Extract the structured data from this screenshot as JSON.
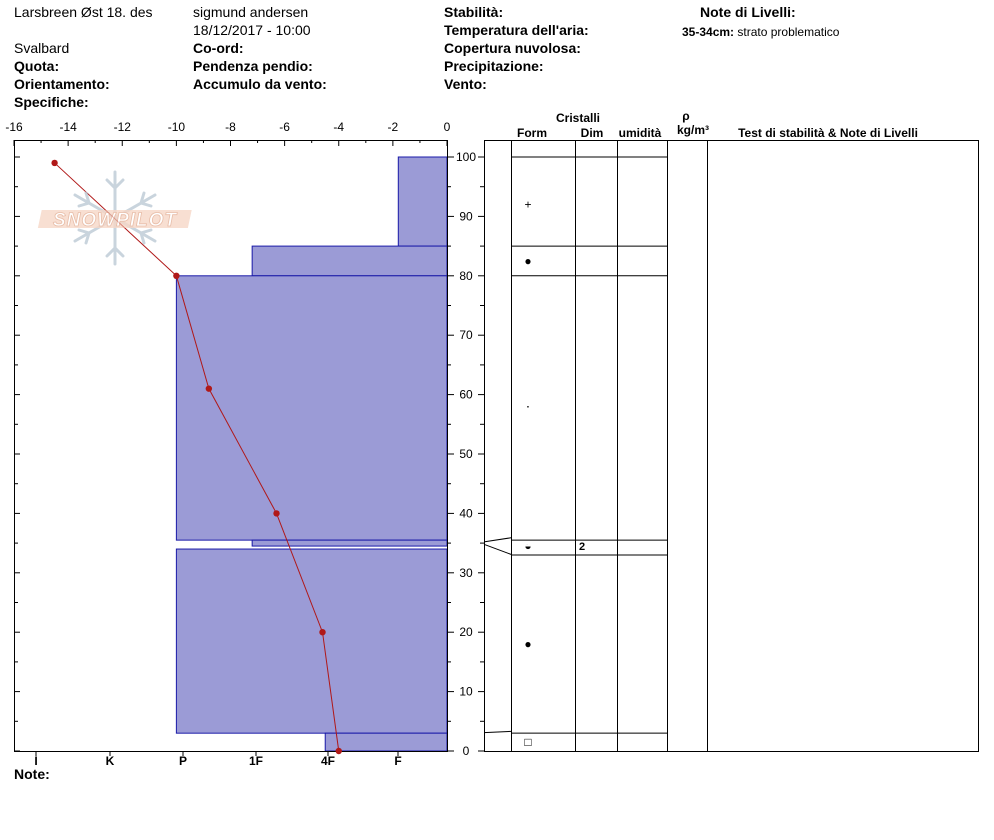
{
  "header": {
    "location": "Larsbreen Øst 18. des",
    "observer": "sigmund andersen",
    "datetime": "18/12/2017 - 10:00",
    "region": "Svalbard",
    "labels": {
      "quota": "Quota:",
      "orientamento": "Orientamento:",
      "specifiche": "Specifiche:",
      "coord": "Co-ord:",
      "pendenza": "Pendenza pendio:",
      "accumulo": "Accumulo da vento:",
      "stabilita": "Stabilità:",
      "temperatura": "Temperatura dell'aria:",
      "copertura": "Copertura nuvolosa:",
      "precipitazione": "Precipitazione:",
      "vento": "Vento:",
      "note_livelli": "Note di Livelli:"
    },
    "layer_note": {
      "range": "35-34cm:",
      "text": "strato problematico"
    }
  },
  "footer": {
    "note_label": "Note:"
  },
  "columns": {
    "cristalli": "Cristalli",
    "form": "Form",
    "dim": "Dim",
    "umidita": "umidità",
    "rho": "ρ",
    "density_unit": "kg/m³",
    "stability": "Test di stabilità & Note di Livelli"
  },
  "logo": {
    "text": "SNOWPILOT"
  },
  "chart_data": {
    "type": "snow-profile",
    "temperature_axis": {
      "ticks": [
        -16,
        -14,
        -12,
        -10,
        -8,
        -6,
        -4,
        -2,
        0
      ],
      "range": [
        -16,
        0
      ]
    },
    "height_axis": {
      "ticks": [
        0,
        10,
        20,
        30,
        40,
        50,
        60,
        70,
        80,
        90,
        100
      ],
      "range": [
        0,
        103
      ]
    },
    "hardness_axis": {
      "ticks": [
        "I",
        "K",
        "P",
        "1F",
        "4F",
        "F"
      ]
    },
    "temperature_profile": [
      {
        "height": 99,
        "temp": -14.5
      },
      {
        "height": 80,
        "temp": -10
      },
      {
        "height": 61,
        "temp": -8.8
      },
      {
        "height": 40,
        "temp": -6.3
      },
      {
        "height": 20,
        "temp": -4.6
      },
      {
        "height": 0,
        "temp": -4.0
      }
    ],
    "layers": [
      {
        "top": 100,
        "bottom": 85,
        "hardness_temp": -1.8,
        "form": "+",
        "dim": ""
      },
      {
        "top": 85,
        "bottom": 80,
        "hardness_temp": -7.2,
        "form": "●",
        "dim": ""
      },
      {
        "top": 80,
        "bottom": 35.5,
        "hardness_temp": -10,
        "form": "·",
        "dim": ""
      },
      {
        "top": 35.5,
        "bottom": 34.5,
        "hardness_temp": -7.2,
        "form": "◒",
        "dim": "2"
      },
      {
        "top": 34,
        "bottom": 3,
        "hardness_temp": -10,
        "form": "●",
        "dim": ""
      },
      {
        "top": 3,
        "bottom": 0,
        "hardness_temp": -4.5,
        "form": "□",
        "dim": ""
      }
    ]
  }
}
